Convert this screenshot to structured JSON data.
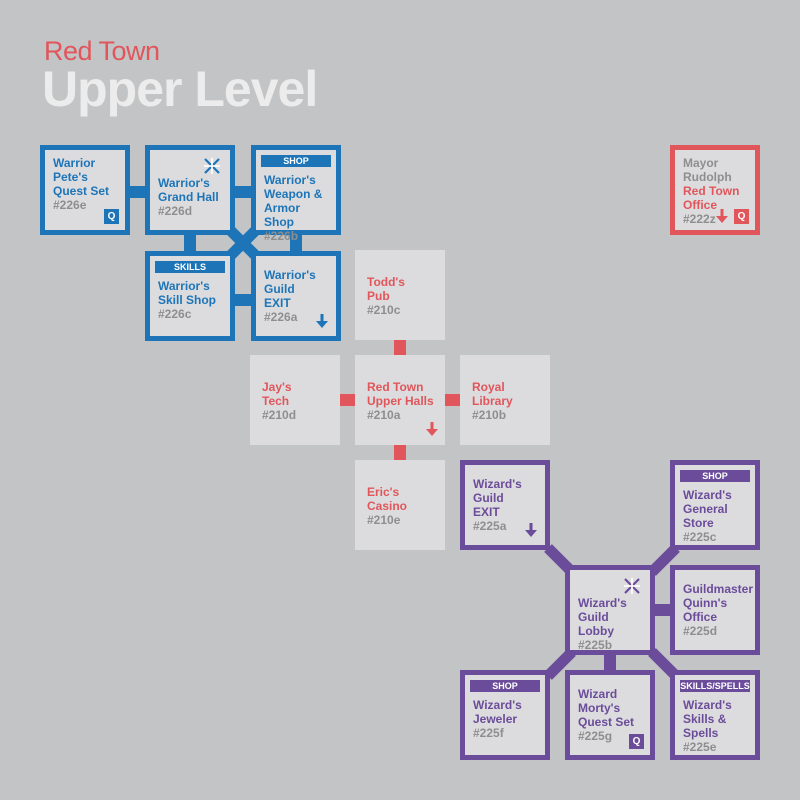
{
  "header": {
    "subtitle": "Red Town",
    "title": "Upper Level"
  },
  "colors": {
    "background": "#c3c4c6",
    "warrior": "#1d75b8",
    "wizard": "#6b4c9a",
    "town": "#e0565b",
    "room_fill": "#dcdcde",
    "number_text": "#8e8e8e"
  },
  "rooms": {
    "warrior_pete": {
      "name": "Warrior\nPete's\nQuest Set",
      "number": "#226e",
      "badge": "Q"
    },
    "warrior_grand_hall": {
      "name": "Warrior's\nGrand Hall",
      "number": "#226d",
      "icon": "portal-star-icon"
    },
    "warrior_weapon_shop": {
      "tag": "SHOP",
      "name": "Warrior's\nWeapon &\nArmor Shop",
      "number": "#226b"
    },
    "warrior_skill_shop": {
      "tag": "SKILLS",
      "name": "Warrior's\nSkill Shop",
      "number": "#226c"
    },
    "warrior_guild_exit": {
      "name": "Warrior's\nGuild\nEXIT",
      "number": "#226a",
      "icon": "down-arrow-icon"
    },
    "mayor_office": {
      "person": "Mayor\nRudolph",
      "name": "Red Town\nOffice",
      "number": "#222z",
      "badge": "Q",
      "icon": "down-arrow-icon"
    },
    "todds_pub": {
      "name": "Todd's\nPub",
      "number": "#210c"
    },
    "jays_tech": {
      "name": "Jay's\nTech",
      "number": "#210d"
    },
    "upper_halls": {
      "name": "Red Town\nUpper Halls",
      "number": "#210a",
      "icon": "down-arrow-icon"
    },
    "royal_library": {
      "name": "Royal\nLibrary",
      "number": "#210b"
    },
    "erics_casino": {
      "name": "Eric's\nCasino",
      "number": "#210e"
    },
    "wizard_guild_exit": {
      "name": "Wizard's\nGuild\nEXIT",
      "number": "#225a",
      "icon": "down-arrow-icon"
    },
    "wizard_general_store": {
      "tag": "SHOP",
      "name": "Wizard's\nGeneral\nStore",
      "number": "#225c"
    },
    "wizard_guild_lobby": {
      "name": "Wizard's\nGuild Lobby",
      "number": "#225b",
      "icon": "portal-star-icon"
    },
    "guildmaster_office": {
      "name": "Guildmaster\nQuinn's\nOffice",
      "number": "#225d"
    },
    "wizard_jeweler": {
      "tag": "SHOP",
      "name": "Wizard's\nJeweler",
      "number": "#225f"
    },
    "wizard_morty": {
      "name": "Wizard\nMorty's\nQuest Set",
      "number": "#225g",
      "badge": "Q"
    },
    "wizard_skills": {
      "tag": "SKILLS/SPELLS",
      "name": "Wizard's\nSkills &\nSpells",
      "number": "#225e"
    }
  }
}
